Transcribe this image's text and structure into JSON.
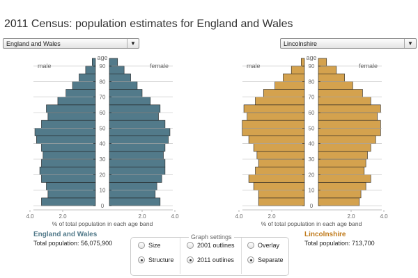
{
  "page": {
    "title": "2011 Census: population estimates for England and Wales"
  },
  "selectors": {
    "left": {
      "value": "England and Wales"
    },
    "right": {
      "value": "Lincolnshire"
    }
  },
  "pyramid_labels": {
    "male": "male",
    "female": "female",
    "age": "age",
    "x_axis_label": "% of total population in each age band"
  },
  "left_panel": {
    "name": "England and Wales",
    "total_label": "Total population: 56,075,900",
    "color": "#527a8a"
  },
  "right_panel": {
    "name": "Lincolnshire",
    "total_label": "Total population: 713,700",
    "color": "#d4a24e",
    "name_color": "#c07a1a"
  },
  "settings": {
    "title": "Graph settings",
    "options": {
      "size": "Size",
      "structure": "Structure",
      "outlines_2001": "2001 outlines",
      "outlines_2011": "2011 outlines",
      "overlay": "Overlay",
      "separate": "Separate"
    },
    "selected": {
      "scale": "structure",
      "outlines": "outlines_2011",
      "layout": "separate"
    }
  },
  "chart_data": [
    {
      "type": "bar",
      "title": "England and Wales",
      "xlabel": "% of total population in each age band",
      "ylabel": "age",
      "y_ticks": [
        "0",
        "10",
        "20",
        "30",
        "40",
        "50",
        "60",
        "70",
        "80",
        "90"
      ],
      "x_ticks": [
        "4.0",
        "2.0",
        "2.0",
        "4.0"
      ],
      "xlim": [
        0,
        4.0
      ],
      "categories": [
        "0-4",
        "5-9",
        "10-14",
        "15-19",
        "20-24",
        "25-29",
        "30-34",
        "35-39",
        "40-44",
        "45-49",
        "50-54",
        "55-59",
        "60-64",
        "65-69",
        "70-74",
        "75-79",
        "80-84",
        "85-89",
        "90+"
      ],
      "series": [
        {
          "name": "male",
          "values": [
            3.3,
            2.9,
            3.0,
            3.3,
            3.4,
            3.3,
            3.2,
            3.3,
            3.6,
            3.7,
            3.3,
            2.9,
            3.0,
            2.3,
            1.8,
            1.4,
            1.0,
            0.6,
            0.2
          ]
        },
        {
          "name": "female",
          "values": [
            3.1,
            2.8,
            2.9,
            3.2,
            3.4,
            3.4,
            3.3,
            3.4,
            3.6,
            3.7,
            3.4,
            3.0,
            3.1,
            2.5,
            2.0,
            1.7,
            1.3,
            0.9,
            0.5
          ]
        }
      ]
    },
    {
      "type": "bar",
      "title": "Lincolnshire",
      "xlabel": "% of total population in each age band",
      "ylabel": "age",
      "y_ticks": [
        "0",
        "10",
        "20",
        "30",
        "40",
        "50",
        "60",
        "70",
        "80",
        "90"
      ],
      "x_ticks": [
        "4.0",
        "2.0",
        "2.0",
        "4.0"
      ],
      "xlim": [
        0,
        4.0
      ],
      "categories": [
        "0-4",
        "5-9",
        "10-14",
        "15-19",
        "20-24",
        "25-29",
        "30-34",
        "35-39",
        "40-44",
        "45-49",
        "50-54",
        "55-59",
        "60-64",
        "65-69",
        "70-74",
        "75-79",
        "80-84",
        "85-89",
        "90+"
      ],
      "series": [
        {
          "name": "male",
          "values": [
            2.8,
            2.8,
            3.1,
            3.4,
            3.0,
            2.8,
            2.9,
            3.1,
            3.4,
            3.8,
            3.8,
            3.5,
            3.7,
            3.0,
            2.5,
            1.8,
            1.3,
            0.8,
            0.2
          ]
        },
        {
          "name": "female",
          "values": [
            2.5,
            2.6,
            2.9,
            3.2,
            2.8,
            2.9,
            3.0,
            3.2,
            3.5,
            3.8,
            3.8,
            3.6,
            3.8,
            3.2,
            2.7,
            2.1,
            1.6,
            1.1,
            0.5
          ]
        }
      ]
    }
  ]
}
